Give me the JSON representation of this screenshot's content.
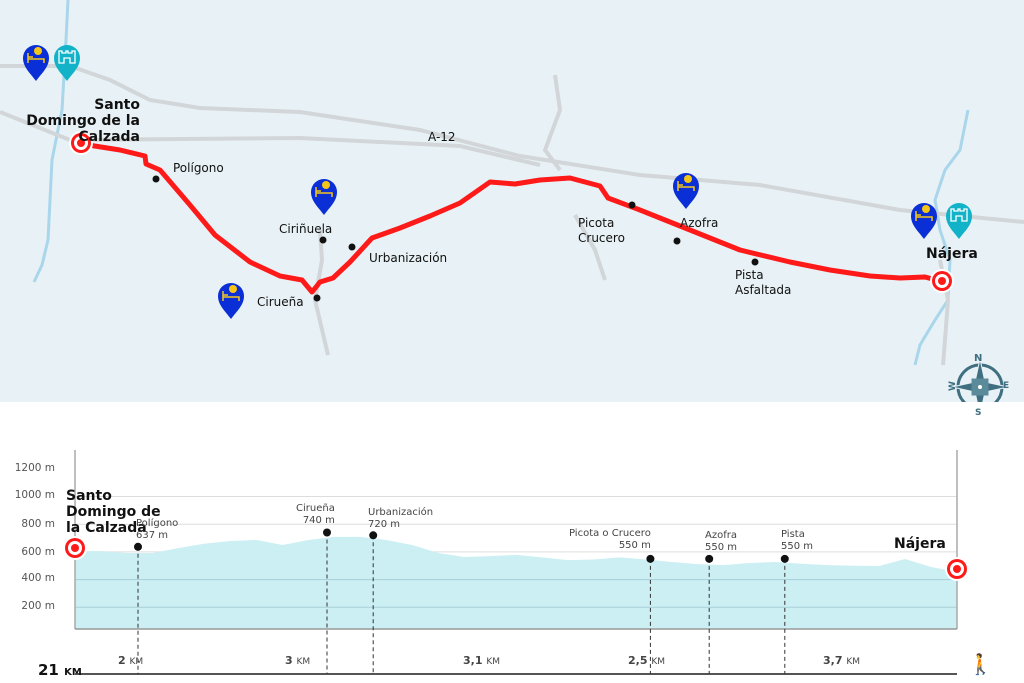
{
  "map": {
    "road_label": "A-12",
    "start_town": "Santo Domingo de la Calzada",
    "end_town": "Nájera",
    "places": [
      "Polígono",
      "Ciriñuela",
      "Urbanización",
      "Cirueña",
      "Picota Crucero",
      "Azofra",
      "Pista Asfaltada"
    ],
    "pins": [
      {
        "type": "albergue-bed-shell-icon",
        "near": "Santo Domingo de la Calzada",
        "color": "#0a2fd6"
      },
      {
        "type": "castle-monument-icon",
        "near": "Santo Domingo de la Calzada",
        "color": "#12b3c8"
      },
      {
        "type": "albergue-bed-shell-icon",
        "near": "Ciriñuela",
        "color": "#0a2fd6"
      },
      {
        "type": "albergue-bed-shell-icon",
        "near": "Cirueña",
        "color": "#0a2fd6"
      },
      {
        "type": "albergue-bed-shell-icon",
        "near": "Azofra",
        "color": "#0a2fd6"
      },
      {
        "type": "albergue-bed-shell-icon",
        "near": "Nájera",
        "color": "#0a2fd6"
      },
      {
        "type": "castle-monument-icon",
        "near": "Nájera",
        "color": "#12b3c8"
      }
    ],
    "compass": {
      "n": "N",
      "e": "E",
      "s": "S",
      "w": "W"
    },
    "route_color": "#ff1a1a"
  },
  "profile": {
    "y_ticks": [
      "1200 m",
      "1000 m",
      "800 m",
      "600 m",
      "400 m",
      "200 m"
    ],
    "start_town": "Santo Domingo de la Calzada",
    "end_town": "Nájera",
    "total_distance": "21",
    "total_unit": "KM",
    "waypoints": [
      {
        "name": "Polígono",
        "elev": "637 m",
        "km": 1.5
      },
      {
        "name": "Cirueña",
        "elev": "740 m",
        "km": 6.0
      },
      {
        "name": "Urbanización",
        "elev": "720 m",
        "km": 7.1
      },
      {
        "name": "Picota o Crucero",
        "elev": "550 m",
        "km": 13.7
      },
      {
        "name": "Azofra",
        "elev": "550 m",
        "km": 15.1
      },
      {
        "name": "Pista",
        "elev": "550 m",
        "km": 16.9
      }
    ],
    "segments": [
      {
        "value": "2",
        "unit": "KM"
      },
      {
        "value": "3",
        "unit": "KM"
      },
      {
        "value": "3,1",
        "unit": "KM"
      },
      {
        "value": "2,5",
        "unit": "KM"
      },
      {
        "value": "3,7",
        "unit": "KM"
      }
    ],
    "elevation_m": [
      606,
      606,
      592,
      592,
      628,
      660,
      679,
      686,
      650,
      686,
      708,
      708,
      686,
      650,
      592,
      563,
      570,
      578,
      560,
      541,
      545,
      560,
      545,
      527,
      512,
      505,
      520,
      527,
      515,
      505,
      500,
      498,
      549,
      491,
      455
    ],
    "fill_color": "#c8eef2"
  }
}
